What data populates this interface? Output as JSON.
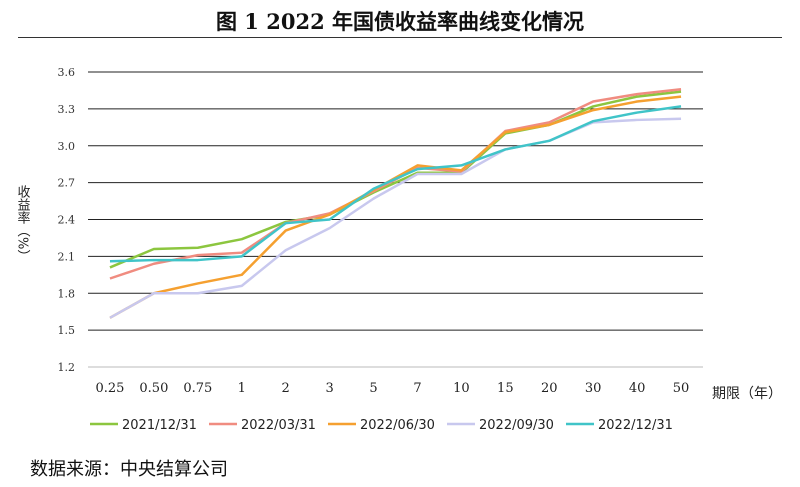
{
  "title": "图 1 2022 年国债收益率曲线变化情况",
  "source": "数据来源：中央结算公司",
  "chart_data": {
    "type": "line",
    "title": "图 1 2022 年国债收益率曲线变化情况",
    "xlabel": "期限（年）",
    "ylabel": "收益率（%）",
    "categories": [
      "0.25",
      "0.50",
      "0.75",
      "1",
      "2",
      "3",
      "5",
      "7",
      "10",
      "15",
      "20",
      "30",
      "40",
      "50"
    ],
    "ylim": [
      1.2,
      3.6
    ],
    "yticks": [
      "1.2",
      "1.5",
      "1.8",
      "2.1",
      "2.4",
      "2.7",
      "3.0",
      "3.3",
      "3.6"
    ],
    "grid": true,
    "legend": "bottom",
    "series": [
      {
        "name": "2021/12/31",
        "color": "#8cc63f",
        "values": [
          2.01,
          2.16,
          2.17,
          2.24,
          2.38,
          2.44,
          2.62,
          2.78,
          2.78,
          3.1,
          3.17,
          3.32,
          3.4,
          3.44
        ]
      },
      {
        "name": "2022/03/31",
        "color": "#f08c80",
        "values": [
          1.92,
          2.04,
          2.11,
          2.13,
          2.37,
          2.45,
          2.63,
          2.82,
          2.79,
          3.12,
          3.19,
          3.36,
          3.42,
          3.46
        ]
      },
      {
        "name": "2022/06/30",
        "color": "#f5a030",
        "values": [
          1.6,
          1.8,
          1.88,
          1.95,
          2.31,
          2.44,
          2.64,
          2.84,
          2.8,
          3.11,
          3.17,
          3.29,
          3.36,
          3.4
        ]
      },
      {
        "name": "2022/09/30",
        "color": "#c8c8ee",
        "values": [
          1.6,
          1.8,
          1.8,
          1.86,
          2.15,
          2.33,
          2.57,
          2.77,
          2.77,
          2.97,
          3.04,
          3.19,
          3.21,
          3.22
        ]
      },
      {
        "name": "2022/12/31",
        "color": "#40c4c8",
        "values": [
          2.06,
          2.07,
          2.07,
          2.1,
          2.37,
          2.4,
          2.65,
          2.81,
          2.84,
          2.97,
          3.04,
          3.2,
          3.27,
          3.32
        ]
      }
    ]
  }
}
